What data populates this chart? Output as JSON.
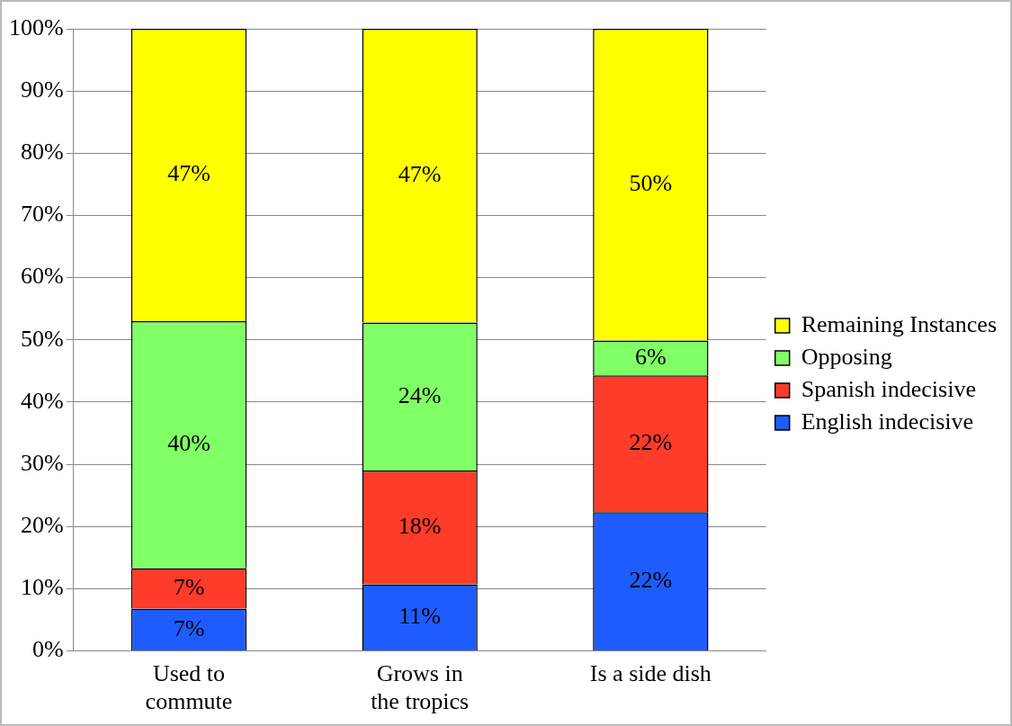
{
  "chart_data": {
    "type": "bar",
    "stacked": true,
    "categories": [
      "Used to commute",
      "Grows in the tropics",
      "Is a side dish"
    ],
    "series": [
      {
        "name": "English indecisive",
        "color": "#1f5cff",
        "values": [
          6.8,
          10.7,
          22.3
        ],
        "value_labels": [
          "7%",
          "11%",
          "22%"
        ]
      },
      {
        "name": "Spanish indecisive",
        "color": "#ff3b2a",
        "values": [
          6.5,
          18.3,
          22
        ],
        "value_labels": [
          "7%",
          "18%",
          "22%"
        ]
      },
      {
        "name": "Opposing",
        "color": "#80ff66",
        "values": [
          39.7,
          23.8,
          5.6
        ],
        "value_labels": [
          "40%",
          "24%",
          "6%"
        ]
      },
      {
        "name": "Remaining Instances",
        "color": "#ffff00",
        "values": [
          47,
          47.2,
          50.1
        ],
        "value_labels": [
          "47%",
          "47%",
          "50%"
        ]
      }
    ],
    "ylim": [
      0,
      100
    ],
    "yticks": [
      {
        "value": 0,
        "label": "0%"
      },
      {
        "value": 10,
        "label": "10%"
      },
      {
        "value": 20,
        "label": "20%"
      },
      {
        "value": 30,
        "label": "30%"
      },
      {
        "value": 40,
        "label": "40%"
      },
      {
        "value": 50,
        "label": "50%"
      },
      {
        "value": 60,
        "label": "60%"
      },
      {
        "value": 70,
        "label": "70%"
      },
      {
        "value": 80,
        "label": "80%"
      },
      {
        "value": 90,
        "label": "90%"
      },
      {
        "value": 100,
        "label": "100%"
      }
    ],
    "grid": "y",
    "legend": "right"
  }
}
